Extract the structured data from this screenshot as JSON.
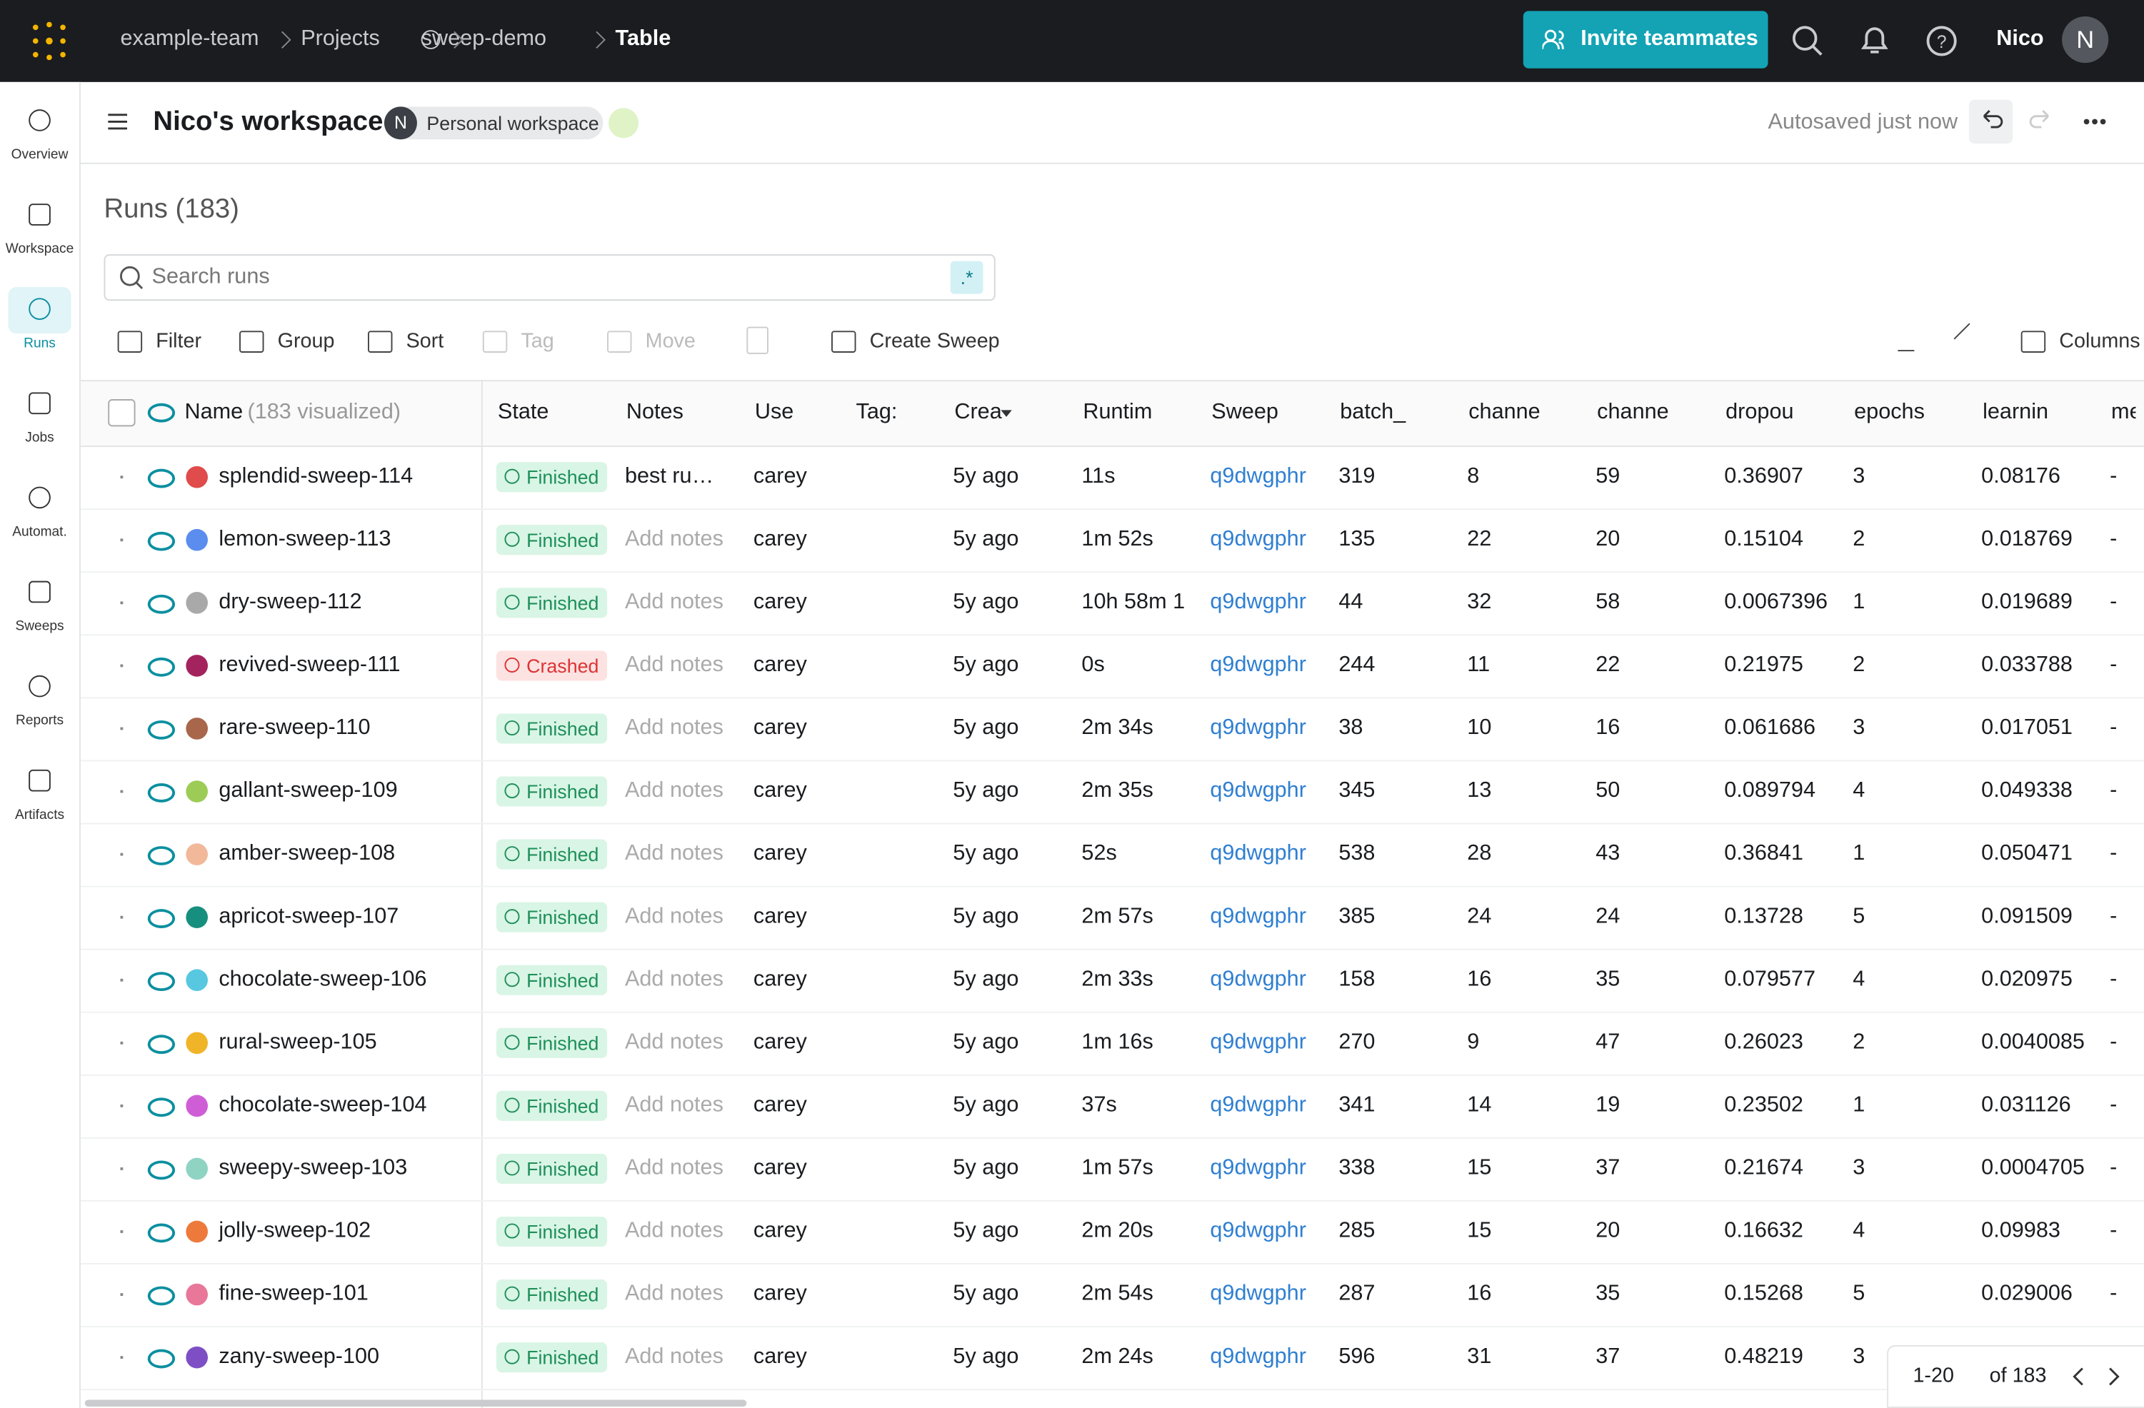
{
  "topbar": {
    "breadcrumb": [
      "example-team",
      "Projects",
      "sweep-demo",
      "Table"
    ],
    "invite": "Invite teammates",
    "user": "Nico",
    "avatar": "N"
  },
  "sidebar": [
    "Overview",
    "Workspace",
    "Runs",
    "Jobs",
    "Automat.",
    "Sweeps",
    "Reports",
    "Artifacts"
  ],
  "workspace": {
    "title": "Nico's workspace",
    "avatar": "N",
    "badge": "Personal workspace",
    "status": "Autosaved just now"
  },
  "runs": {
    "title": "Runs (183)",
    "search_placeholder": "Search runs",
    "regex": ".*",
    "toolbar": [
      "Filter",
      "Group",
      "Sort",
      "Tag",
      "Move",
      "Create Sweep",
      "Columns"
    ],
    "name_header": "Name",
    "visualized": "(183 visualized)",
    "columns": [
      "State",
      "Notes",
      "Use",
      "Tag:",
      "Crea",
      "Runtim",
      "Sweep",
      "batch_",
      "channe",
      "channe",
      "dropou",
      "epochs",
      "learnin",
      "me"
    ],
    "rows": [
      [
        "splendid-sweep-114",
        "#e04b4b",
        "Finished",
        "best ru…",
        "carey",
        "5y ago",
        "11s",
        "q9dwgphr",
        319,
        8,
        59,
        0.36907,
        3,
        0.08176,
        "-"
      ],
      [
        "lemon-sweep-113",
        "#5b8def",
        "Finished",
        "Add notes",
        "carey",
        "5y ago",
        "1m 52s",
        "q9dwgphr",
        135,
        22,
        20,
        0.15104,
        2,
        0.018769,
        "-"
      ],
      [
        "dry-sweep-112",
        "#a9a9a9",
        "Finished",
        "Add notes",
        "carey",
        "5y ago",
        "10h 58m 1",
        "q9dwgphr",
        44,
        32,
        58,
        0.0067396,
        1,
        0.019689,
        "-"
      ],
      [
        "revived-sweep-111",
        "#a3235e",
        "Crashed",
        "Add notes",
        "carey",
        "5y ago",
        "0s",
        "q9dwgphr",
        244,
        11,
        22,
        0.21975,
        2,
        0.033788,
        "-"
      ],
      [
        "rare-sweep-110",
        "#a8664a",
        "Finished",
        "Add notes",
        "carey",
        "5y ago",
        "2m 34s",
        "q9dwgphr",
        38,
        10,
        16,
        0.061686,
        3,
        0.017051,
        "-"
      ],
      [
        "gallant-sweep-109",
        "#9ccc56",
        "Finished",
        "Add notes",
        "carey",
        "5y ago",
        "2m 35s",
        "q9dwgphr",
        345,
        13,
        50,
        0.089794,
        4,
        0.049338,
        "-"
      ],
      [
        "amber-sweep-108",
        "#f2b89a",
        "Finished",
        "Add notes",
        "carey",
        "5y ago",
        "52s",
        "q9dwgphr",
        538,
        28,
        43,
        0.36841,
        1,
        0.050471,
        "-"
      ],
      [
        "apricot-sweep-107",
        "#178f7e",
        "Finished",
        "Add notes",
        "carey",
        "5y ago",
        "2m 57s",
        "q9dwgphr",
        385,
        24,
        24,
        0.13728,
        5,
        0.091509,
        "-"
      ],
      [
        "chocolate-sweep-106",
        "#58c8e0",
        "Finished",
        "Add notes",
        "carey",
        "5y ago",
        "2m 33s",
        "q9dwgphr",
        158,
        16,
        35,
        0.079577,
        4,
        0.020975,
        "-"
      ],
      [
        "rural-sweep-105",
        "#f0b429",
        "Finished",
        "Add notes",
        "carey",
        "5y ago",
        "1m 16s",
        "q9dwgphr",
        270,
        9,
        47,
        0.26023,
        2,
        0.0040085,
        "-"
      ],
      [
        "chocolate-sweep-104",
        "#cf5ed6",
        "Finished",
        "Add notes",
        "carey",
        "5y ago",
        "37s",
        "q9dwgphr",
        341,
        14,
        19,
        0.23502,
        1,
        0.031126,
        "-"
      ],
      [
        "sweepy-sweep-103",
        "#8fd3c3",
        "Finished",
        "Add notes",
        "carey",
        "5y ago",
        "1m 57s",
        "q9dwgphr",
        338,
        15,
        37,
        0.21674,
        3,
        0.0004705,
        "-"
      ],
      [
        "jolly-sweep-102",
        "#ed7a3a",
        "Finished",
        "Add notes",
        "carey",
        "5y ago",
        "2m 20s",
        "q9dwgphr",
        285,
        15,
        20,
        0.16632,
        4,
        0.09983,
        "-"
      ],
      [
        "fine-sweep-101",
        "#e8779a",
        "Finished",
        "Add notes",
        "carey",
        "5y ago",
        "2m 54s",
        "q9dwgphr",
        287,
        16,
        35,
        0.15268,
        5,
        0.029006,
        "-"
      ],
      [
        "zany-sweep-100",
        "#7e4fc4",
        "Finished",
        "Add notes",
        "carey",
        "5y ago",
        "2m 24s",
        "q9dwgphr",
        596,
        31,
        37,
        0.48219,
        3
      ]
    ],
    "pagination": {
      "range": "1-20",
      "total": "of 183"
    }
  }
}
